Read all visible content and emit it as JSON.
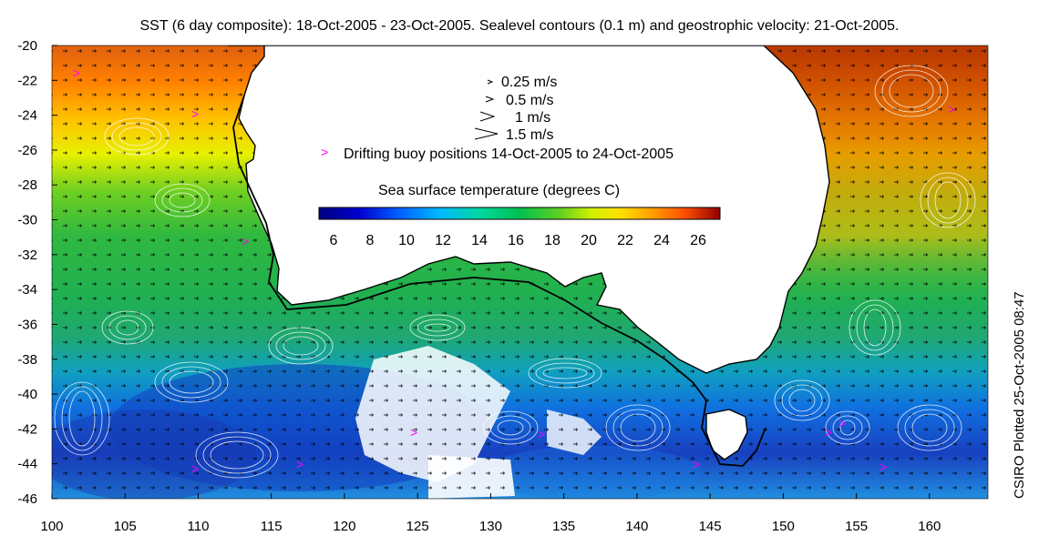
{
  "title": "SST (6 day composite): 18-Oct-2005 - 23-Oct-2005. Sealevel contours (0.1 m) and geostrophic velocity: 21-Oct-2005.",
  "side_label": "CSIRO Plotted 25-Oct-2005 08:47",
  "axes": {
    "x_ticks": [
      "100",
      "105",
      "110",
      "115",
      "120",
      "125",
      "130",
      "135",
      "140",
      "145",
      "150",
      "155",
      "160"
    ],
    "y_ticks": [
      "-20",
      "-22",
      "-24",
      "-26",
      "-28",
      "-30",
      "-32",
      "-34",
      "-36",
      "-38",
      "-40",
      "-42",
      "-44",
      "-46"
    ],
    "x_range": [
      100,
      164
    ],
    "y_range": [
      -46,
      -20
    ]
  },
  "legend": {
    "speeds": [
      {
        "label": "0.25 m/s"
      },
      {
        "label": "0.5 m/s"
      },
      {
        "label": "1 m/s"
      },
      {
        "label": "1.5 m/s"
      }
    ],
    "buoy_marker": ">",
    "buoy_label": "Drifting buoy positions 14-Oct-2005 to 24-Oct-2005",
    "colorbar_title": "Sea surface temperature (degrees C)",
    "colorbar_ticks": [
      "6",
      "8",
      "10",
      "12",
      "14",
      "16",
      "18",
      "20",
      "22",
      "24",
      "26"
    ],
    "colorbar_range": [
      5.2,
      27.2
    ]
  },
  "colors": {
    "sst_scale": [
      "#00007f",
      "#0000cc",
      "#0060ff",
      "#00b0ff",
      "#00d8c0",
      "#00c060",
      "#40c020",
      "#c0e000",
      "#ffe000",
      "#ffa000",
      "#ff6000",
      "#c02000",
      "#800000"
    ],
    "land": "#ffffff",
    "coastline": "#000000",
    "contour": "#ffffff",
    "buoy": "#ff00ff"
  }
}
